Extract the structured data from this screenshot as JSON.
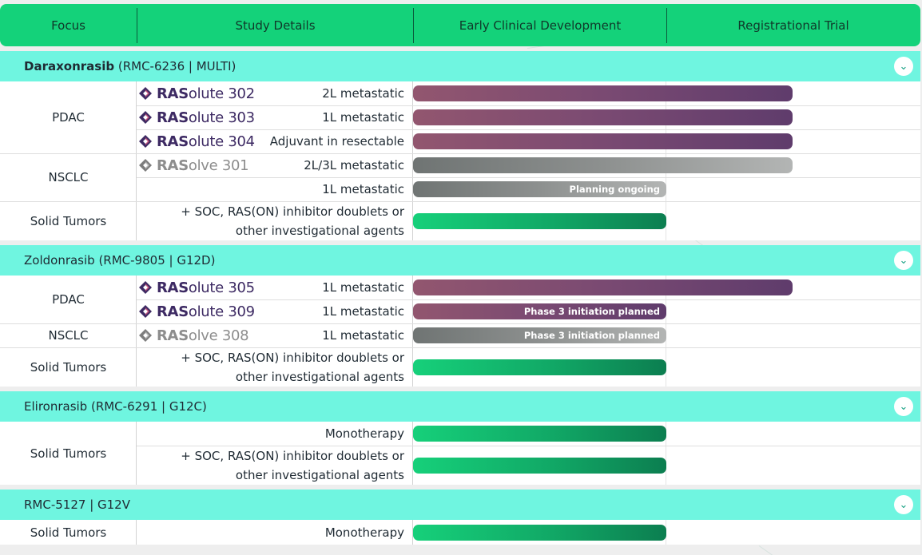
{
  "header": {
    "columns": [
      "Focus",
      "Study Details",
      "Early Clinical Development",
      "Registrational Trial"
    ]
  },
  "sections": [
    {
      "title_bold": "Daraxonrasib",
      "title_rest": " (RMC-6236 | MULTI)",
      "rows": [
        {
          "focus": "PDAC",
          "logo_bold": "RAS",
          "logo_rest": "olute 302",
          "logo_color": "purple",
          "detail": "2L metastatic",
          "bar_color": "purple",
          "bar_stage": "registrational",
          "bar_label": ""
        },
        {
          "focus": "",
          "logo_bold": "RAS",
          "logo_rest": "olute 303",
          "logo_color": "purple",
          "detail": "1L metastatic",
          "bar_color": "purple",
          "bar_stage": "registrational",
          "bar_label": ""
        },
        {
          "focus": "",
          "logo_bold": "RAS",
          "logo_rest": "olute 304",
          "logo_color": "purple",
          "detail": "Adjuvant in resectable",
          "bar_color": "purple",
          "bar_stage": "registrational",
          "bar_label": ""
        },
        {
          "focus": "NSCLC",
          "logo_bold": "RAS",
          "logo_rest": "olve 301",
          "logo_color": "gray",
          "detail": "2L/3L metastatic",
          "bar_color": "gray",
          "bar_stage": "registrational",
          "bar_label": ""
        },
        {
          "focus": "",
          "logo_bold": "",
          "logo_rest": "",
          "logo_color": "",
          "detail": "1L metastatic",
          "bar_color": "gray",
          "bar_stage": "early",
          "bar_label": "Planning ongoing"
        },
        {
          "focus": "Solid Tumors",
          "detail_line1": "+ SOC, RAS(ON) inhibitor doublets or",
          "detail_line2": "other investigational agents",
          "bar_color": "green",
          "bar_stage": "early",
          "bar_label": ""
        }
      ]
    },
    {
      "title_bold": "",
      "title_rest": "Zoldonrasib (RMC-9805 | G12D)",
      "rows": [
        {
          "focus": "PDAC",
          "logo_bold": "RAS",
          "logo_rest": "olute 305",
          "logo_color": "purple",
          "detail": "1L metastatic",
          "bar_color": "purple",
          "bar_stage": "registrational",
          "bar_label": ""
        },
        {
          "focus": "",
          "logo_bold": "RAS",
          "logo_rest": "olute 309",
          "logo_color": "purple",
          "detail": "1L metastatic",
          "bar_color": "purple",
          "bar_stage": "early",
          "bar_label": "Phase 3 initiation planned"
        },
        {
          "focus": "NSCLC",
          "logo_bold": "RAS",
          "logo_rest": "olve 308",
          "logo_color": "gray",
          "detail": "1L metastatic",
          "bar_color": "gray",
          "bar_stage": "early",
          "bar_label": "Phase 3 initiation planned"
        },
        {
          "focus": "Solid Tumors",
          "detail_line1": "+ SOC, RAS(ON) inhibitor doublets or",
          "detail_line2": "other investigational agents",
          "bar_color": "green",
          "bar_stage": "early",
          "bar_label": ""
        }
      ]
    },
    {
      "title_bold": "",
      "title_rest": "Elironrasib (RMC-6291 | G12C)",
      "rows": [
        {
          "focus": "Solid Tumors",
          "detail": "Monotherapy",
          "bar_color": "green",
          "bar_stage": "early",
          "bar_label": ""
        },
        {
          "focus": "",
          "detail_line1": "+ SOC, RAS(ON) inhibitor doublets or",
          "detail_line2": "other investigational agents",
          "bar_color": "green",
          "bar_stage": "early",
          "bar_label": ""
        }
      ]
    },
    {
      "title_bold": "",
      "title_rest": "RMC-5127 | G12V",
      "rows": [
        {
          "focus": "Solid Tumors",
          "detail": "Monotherapy",
          "bar_color": "green",
          "bar_stage": "early",
          "bar_label": ""
        }
      ]
    }
  ],
  "icons": {
    "expand": "chevron-down-icon",
    "logo_mark": "diamond-logo-icon"
  },
  "colors": {
    "header": "#14d27a",
    "section": "#6ff5e0",
    "purple_bar": "#7a4a72",
    "gray_bar": "#8d908f",
    "green_bar": "#11a866"
  }
}
